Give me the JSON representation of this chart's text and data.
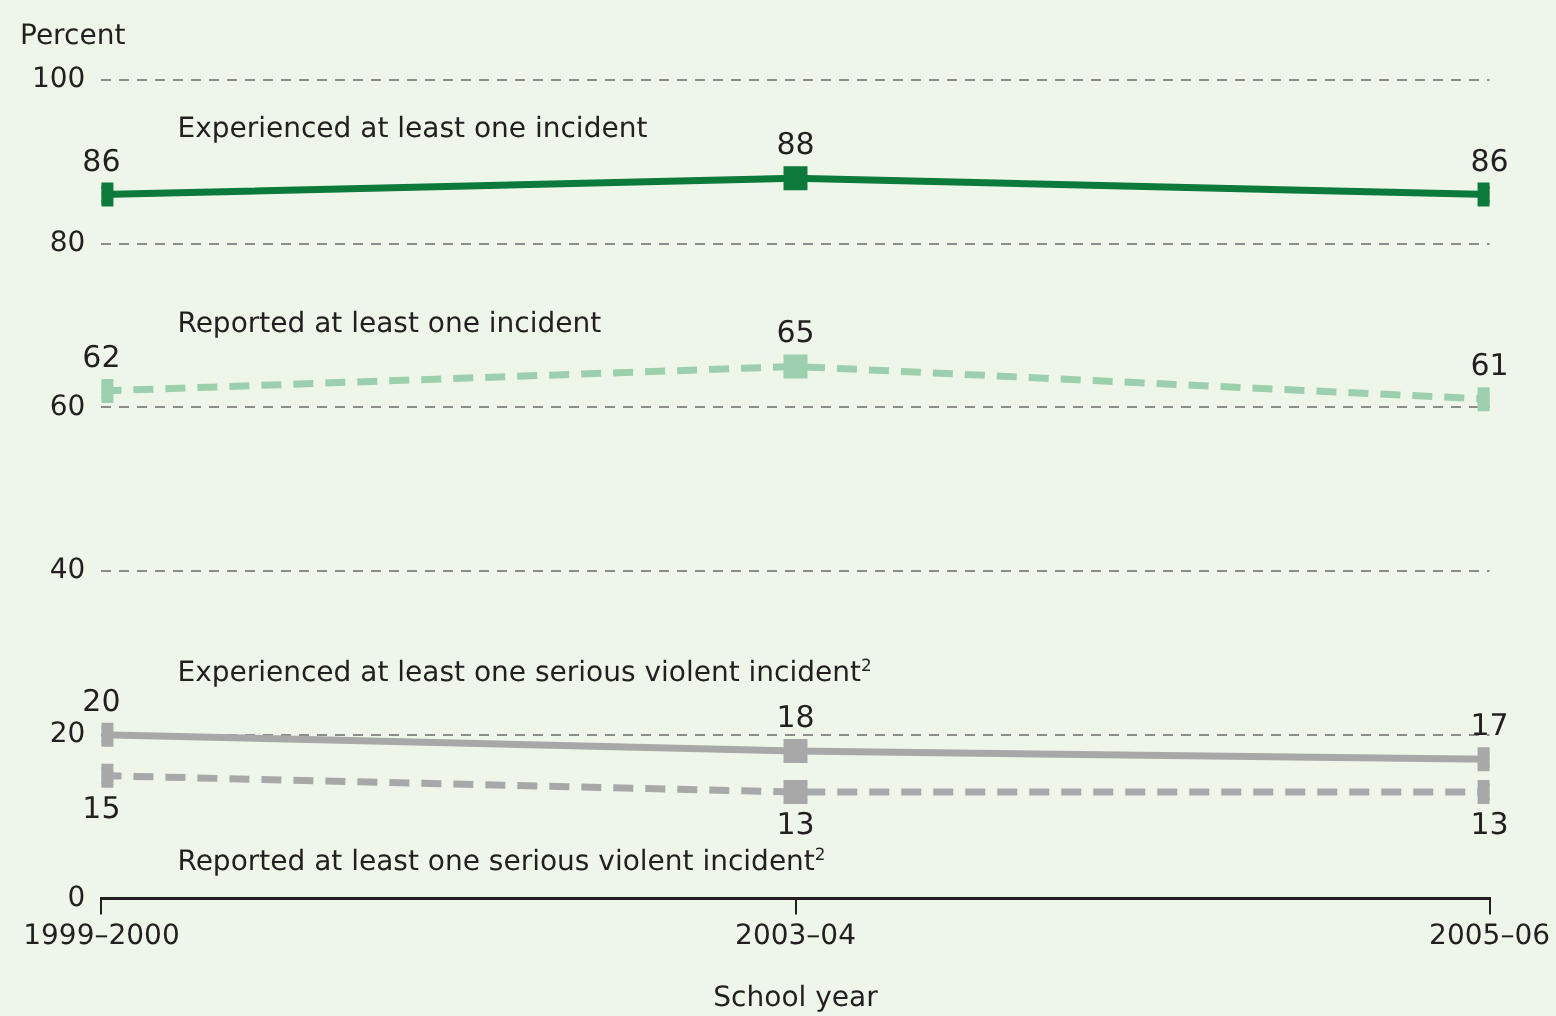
{
  "chart_data": {
    "type": "line",
    "ylabel": "Percent",
    "xlabel": "School year",
    "categories": [
      "1999–2000",
      "2003–04",
      "2005–06"
    ],
    "ylim": [
      0,
      100
    ],
    "yticks": [
      0,
      20,
      40,
      60,
      80,
      100
    ],
    "series": [
      {
        "name": "Experienced at least one incident",
        "color": "#0b7a3b",
        "values": [
          86,
          88,
          86
        ],
        "line_style": "solid"
      },
      {
        "name": "Reported at least one incident",
        "color": "#9ccfae",
        "values": [
          62,
          65,
          61
        ],
        "line_style": "dashed"
      },
      {
        "name": "Experienced at least one serious violent incident$^{2}$",
        "color": "#a8a8a8",
        "values": [
          20,
          18,
          17
        ],
        "line_style": "solid"
      },
      {
        "name": "Reported at least one serious violent incident$^{2}$",
        "color": "#a8a8a8",
        "values": [
          15,
          13,
          13
        ],
        "line_style": "dashed"
      }
    ],
    "marker": "square",
    "grid": "y",
    "data_labels": true,
    "legend": false
  }
}
